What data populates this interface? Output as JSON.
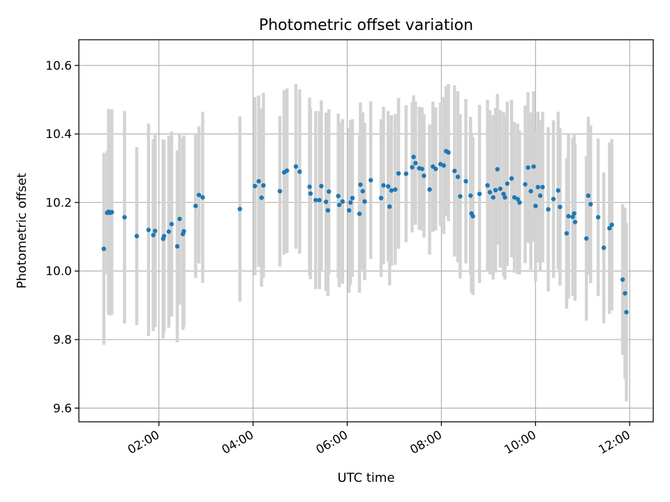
{
  "chart_data": {
    "type": "scatter",
    "title": "Photometric offset variation",
    "xlabel": "UTC time",
    "ylabel": "Photometric offset",
    "x_unit": "hours UTC",
    "xlim": [
      0.3,
      12.5
    ],
    "ylim": [
      9.56,
      10.675
    ],
    "x_ticks": [
      2,
      4,
      6,
      8,
      10,
      12
    ],
    "x_tick_labels": [
      "02:00",
      "04:00",
      "06:00",
      "08:00",
      "10:00",
      "12:00"
    ],
    "y_ticks": [
      9.6,
      9.8,
      10.0,
      10.2,
      10.4,
      10.6
    ],
    "y_tick_labels": [
      "9.6",
      "9.8",
      "10.0",
      "10.2",
      "10.4",
      "10.6"
    ],
    "grid": true,
    "colors": {
      "points": "#1f77b4",
      "errorbars": "#d3d3d3"
    },
    "series": [
      {
        "x": [
          0.83,
          0.9,
          0.93,
          0.96,
          1.0,
          1.27,
          1.53,
          1.78,
          1.88,
          1.92,
          2.09,
          2.11,
          2.21,
          2.27,
          2.39,
          2.44,
          2.51,
          2.53,
          2.78,
          2.85,
          2.93,
          3.72,
          4.04,
          4.12,
          4.18,
          4.22,
          4.57,
          4.66,
          4.72,
          4.91,
          4.99,
          5.2,
          5.22,
          5.33,
          5.41,
          5.45,
          5.55,
          5.59,
          5.61,
          5.81,
          5.83,
          5.9,
          6.04,
          6.07,
          6.11,
          6.26,
          6.28,
          6.33,
          6.37,
          6.5,
          6.72,
          6.77,
          6.87,
          6.9,
          6.94,
          7.02,
          7.09,
          7.25,
          7.38,
          7.41,
          7.45,
          7.53,
          7.59,
          7.63,
          7.75,
          7.82,
          7.88,
          7.98,
          8.05,
          8.1,
          8.15,
          8.28,
          8.35,
          8.4,
          8.52,
          8.62,
          8.64,
          8.67,
          8.81,
          8.98,
          9.03,
          9.1,
          9.15,
          9.19,
          9.25,
          9.32,
          9.35,
          9.4,
          9.49,
          9.55,
          9.62,
          9.66,
          9.78,
          9.84,
          9.9,
          9.96,
          10.0,
          10.05,
          10.1,
          10.15,
          10.27,
          10.38,
          10.48,
          10.52,
          10.66,
          10.7,
          10.79,
          10.82,
          10.84,
          11.08,
          11.12,
          11.17,
          11.33,
          11.45,
          11.57,
          11.62,
          11.85,
          11.9,
          11.93
        ],
        "y": [
          10.065,
          10.17,
          10.173,
          10.17,
          10.172,
          10.157,
          10.102,
          10.12,
          10.105,
          10.117,
          10.094,
          10.102,
          10.115,
          10.137,
          10.072,
          10.152,
          10.108,
          10.116,
          10.19,
          10.222,
          10.215,
          10.181,
          10.248,
          10.262,
          10.214,
          10.25,
          10.233,
          10.288,
          10.293,
          10.305,
          10.29,
          10.246,
          10.226,
          10.207,
          10.207,
          10.248,
          10.202,
          10.177,
          10.232,
          10.219,
          10.193,
          10.203,
          10.177,
          10.2,
          10.213,
          10.167,
          10.252,
          10.233,
          10.203,
          10.265,
          10.213,
          10.25,
          10.247,
          10.188,
          10.235,
          10.238,
          10.285,
          10.284,
          10.303,
          10.333,
          10.315,
          10.3,
          10.298,
          10.278,
          10.238,
          10.305,
          10.298,
          10.312,
          10.308,
          10.35,
          10.346,
          10.292,
          10.275,
          10.218,
          10.262,
          10.22,
          10.168,
          10.16,
          10.225,
          10.25,
          10.23,
          10.215,
          10.236,
          10.297,
          10.24,
          10.225,
          10.215,
          10.255,
          10.27,
          10.215,
          10.21,
          10.2,
          10.253,
          10.302,
          10.233,
          10.305,
          10.19,
          10.245,
          10.22,
          10.245,
          10.18,
          10.21,
          10.235,
          10.187,
          10.11,
          10.16,
          10.158,
          10.168,
          10.143,
          10.095,
          10.22,
          10.195,
          10.157,
          10.068,
          10.125,
          10.135,
          9.975,
          9.935,
          9.88
        ],
        "yerr": [
          0.28,
          0.18,
          0.3,
          0.3,
          0.3,
          0.31,
          0.26,
          0.31,
          0.28,
          0.28,
          0.29,
          0.28,
          0.28,
          0.27,
          0.28,
          0.25,
          0.28,
          0.28,
          0.21,
          0.2,
          0.25,
          0.27,
          0.26,
          0.25,
          0.26,
          0.27,
          0.22,
          0.24,
          0.24,
          0.24,
          0.24,
          0.26,
          0.25,
          0.26,
          0.26,
          0.25,
          0.26,
          0.25,
          0.24,
          0.24,
          0.24,
          0.24,
          0.24,
          0.24,
          0.23,
          0.23,
          0.24,
          0.23,
          0.23,
          0.23,
          0.23,
          0.23,
          0.22,
          0.23,
          0.22,
          0.22,
          0.22,
          0.2,
          0.19,
          0.18,
          0.18,
          0.18,
          0.18,
          0.18,
          0.19,
          0.19,
          0.18,
          0.18,
          0.2,
          0.19,
          0.2,
          0.25,
          0.25,
          0.24,
          0.24,
          0.23,
          0.23,
          0.23,
          0.26,
          0.25,
          0.24,
          0.24,
          0.24,
          0.22,
          0.23,
          0.24,
          0.24,
          0.24,
          0.23,
          0.22,
          0.22,
          0.21,
          0.23,
          0.22,
          0.23,
          0.22,
          0.22,
          0.22,
          0.22,
          0.22,
          0.24,
          0.23,
          0.23,
          0.23,
          0.22,
          0.24,
          0.23,
          0.23,
          0.23,
          0.24,
          0.23,
          0.23,
          0.23,
          0.22,
          0.25,
          0.25,
          0.22,
          0.25,
          0.26
        ]
      }
    ]
  }
}
